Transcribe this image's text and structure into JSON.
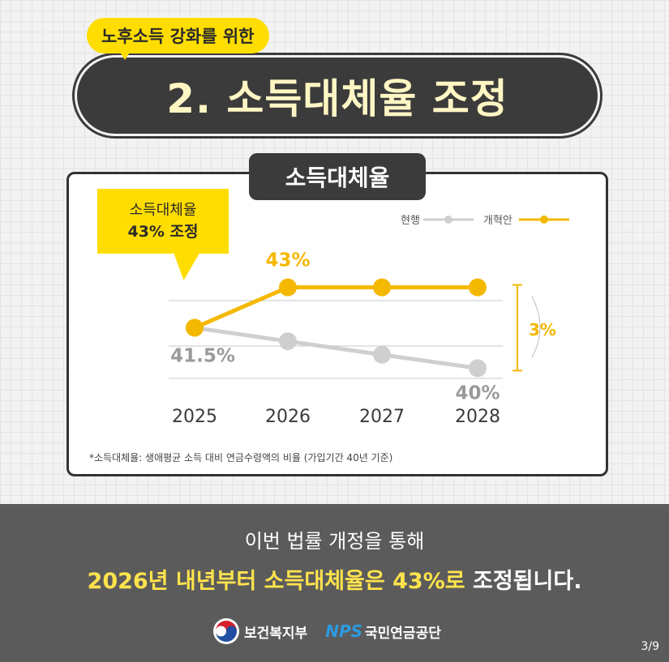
{
  "header": {
    "subtitle": "노후소득 강화를 위한",
    "title": "2. 소득대체율 조정"
  },
  "card": {
    "tab_label": "소득대체율",
    "callout_line1": "소득대체율",
    "callout_line2": "43% 조정",
    "footnote": "*소득대체율: 생애평균 소득 대비 연금수령액의 비율 (가입기간 40년 기준)"
  },
  "chart_data": {
    "type": "line",
    "x": [
      "2025",
      "2026",
      "2027",
      "2028"
    ],
    "series": [
      {
        "name": "현행",
        "color": "#cfcfcf",
        "values": [
          41.5,
          41,
          40.5,
          40
        ]
      },
      {
        "name": "개혁안",
        "color": "#f5b800",
        "values": [
          41.5,
          43,
          43,
          43
        ]
      }
    ],
    "data_labels": [
      {
        "text": "41.5%",
        "series": 0,
        "index": 0
      },
      {
        "text": "43%",
        "series": 1,
        "index": 1
      },
      {
        "text": "40%",
        "series": 0,
        "index": 3
      }
    ],
    "annotation": "3%",
    "ylim": [
      39.2,
      43.8
    ],
    "legend_position": "top-right",
    "grid": true
  },
  "bottom": {
    "line1": "이번 법률 개정을 통해",
    "line2_highlight": "2026년 내년부터 소득대체율은 43%로",
    "line2_rest": " 조정됩니다."
  },
  "logos": {
    "mohw": "보건복지부",
    "nps_mark": "NPS",
    "nps_name": "국민연금공단"
  },
  "page_indicator": "3/9",
  "colors": {
    "accent_yellow": "#ffdd00",
    "line_current": "#cfcfcf",
    "line_reform": "#f5b800",
    "dark": "#3b3b3b",
    "band": "#5b5b5b"
  }
}
